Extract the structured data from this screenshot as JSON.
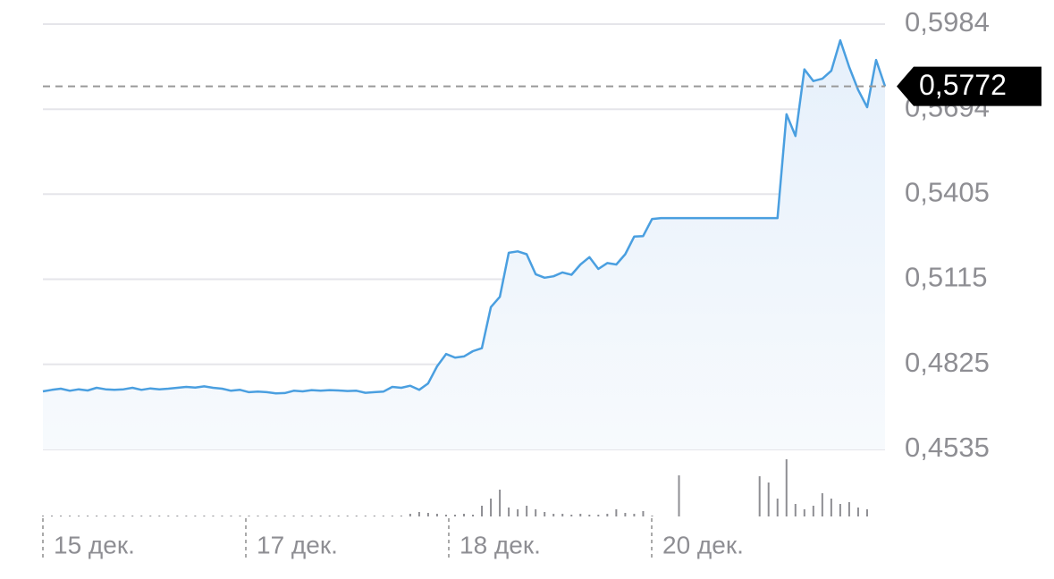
{
  "chart_data": {
    "type": "line",
    "color": "#4a9fe0",
    "grid": true,
    "ylim": [
      0.4535,
      0.5984
    ],
    "yticks": [
      {
        "value": 0.4535,
        "label": "0,4535"
      },
      {
        "value": 0.4825,
        "label": "0,4825"
      },
      {
        "value": 0.5115,
        "label": "0,5115"
      },
      {
        "value": 0.5405,
        "label": "0,5405"
      },
      {
        "value": 0.5694,
        "label": "0,5694"
      },
      {
        "value": 0.5984,
        "label": "0,5984"
      }
    ],
    "x_labels": [
      "15 дек.",
      "17 дек.",
      "18 дек.",
      "20 дек."
    ],
    "last_price": {
      "value": 0.5772,
      "label": "0,5772"
    },
    "values": [
      0.4733,
      0.4738,
      0.4742,
      0.4735,
      0.474,
      0.4736,
      0.4745,
      0.474,
      0.4738,
      0.474,
      0.4745,
      0.4738,
      0.4743,
      0.474,
      0.4742,
      0.4745,
      0.4748,
      0.4746,
      0.475,
      0.4745,
      0.4742,
      0.4735,
      0.4738,
      0.473,
      0.4732,
      0.473,
      0.4726,
      0.4727,
      0.4735,
      0.4733,
      0.4737,
      0.4735,
      0.4737,
      0.4736,
      0.4734,
      0.4735,
      0.4728,
      0.473,
      0.4732,
      0.4748,
      0.4745,
      0.4752,
      0.4738,
      0.476,
      0.4818,
      0.486,
      0.4848,
      0.4852,
      0.487,
      0.488,
      0.502,
      0.5055,
      0.5205,
      0.521,
      0.52,
      0.5132,
      0.512,
      0.5125,
      0.5138,
      0.513,
      0.5165,
      0.519,
      0.515,
      0.517,
      0.5165,
      0.52,
      0.526,
      0.5262,
      0.532,
      0.5323,
      0.5323,
      0.5323,
      0.5323,
      0.5323,
      0.5323,
      0.5323,
      0.5323,
      0.5323,
      0.5323,
      0.5323,
      0.5323,
      0.5323,
      0.5323,
      0.5677,
      0.5603,
      0.583,
      0.579,
      0.5798,
      0.5825,
      0.5929,
      0.5838,
      0.576,
      0.5701,
      0.5862,
      0.5772
    ],
    "volume": [
      1,
      1,
      1,
      1,
      1,
      1,
      1,
      1,
      1,
      1,
      1,
      1,
      1,
      1,
      1,
      1,
      1,
      1,
      1,
      1,
      1,
      1,
      1,
      1,
      1,
      1,
      1,
      1,
      1,
      1,
      1,
      1,
      1,
      1,
      1,
      1,
      1,
      1,
      1,
      1,
      1,
      3,
      5,
      4,
      3,
      2,
      2,
      3,
      2,
      12,
      20,
      30,
      10,
      8,
      12,
      8,
      5,
      3,
      3,
      2,
      3,
      2,
      2,
      3,
      8,
      4,
      3,
      6,
      1,
      0,
      0,
      46,
      0,
      0,
      0,
      0,
      0,
      0,
      0,
      0,
      45,
      38,
      20,
      64,
      14,
      8,
      12,
      26,
      20,
      14,
      16,
      10,
      8,
      0,
      0
    ]
  }
}
